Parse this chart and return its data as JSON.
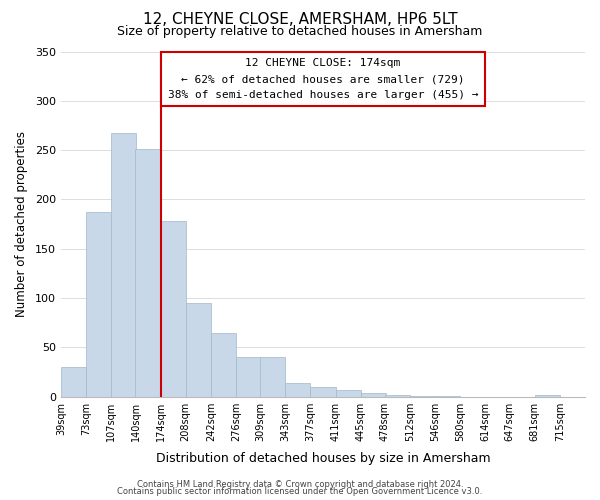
{
  "title": "12, CHEYNE CLOSE, AMERSHAM, HP6 5LT",
  "subtitle": "Size of property relative to detached houses in Amersham",
  "xlabel": "Distribution of detached houses by size in Amersham",
  "ylabel": "Number of detached properties",
  "bar_left_edges": [
    39,
    73,
    107,
    140,
    174,
    208,
    242,
    276,
    309,
    343,
    377,
    411,
    445,
    478,
    512,
    546,
    580,
    614,
    647,
    681
  ],
  "bar_heights": [
    30,
    187,
    267,
    251,
    178,
    95,
    65,
    40,
    40,
    14,
    10,
    7,
    4,
    2,
    1,
    1,
    0,
    0,
    0,
    2
  ],
  "bin_width": 34,
  "x_tick_labels": [
    "39sqm",
    "73sqm",
    "107sqm",
    "140sqm",
    "174sqm",
    "208sqm",
    "242sqm",
    "276sqm",
    "309sqm",
    "343sqm",
    "377sqm",
    "411sqm",
    "445sqm",
    "478sqm",
    "512sqm",
    "546sqm",
    "580sqm",
    "614sqm",
    "647sqm",
    "681sqm",
    "715sqm"
  ],
  "x_tick_positions": [
    39,
    73,
    107,
    140,
    174,
    208,
    242,
    276,
    309,
    343,
    377,
    411,
    445,
    478,
    512,
    546,
    580,
    614,
    647,
    681,
    715
  ],
  "property_line_x": 174,
  "bar_color": "#c8d8e8",
  "bar_edge_color": "#a0b8cc",
  "line_color": "#cc0000",
  "annotation_box_edge": "#cc0000",
  "ylim": [
    0,
    350
  ],
  "yticks": [
    0,
    50,
    100,
    150,
    200,
    250,
    300,
    350
  ],
  "annotation_title": "12 CHEYNE CLOSE: 174sqm",
  "annotation_line1": "← 62% of detached houses are smaller (729)",
  "annotation_line2": "38% of semi-detached houses are larger (455) →",
  "footer_line1": "Contains HM Land Registry data © Crown copyright and database right 2024.",
  "footer_line2": "Contains public sector information licensed under the Open Government Licence v3.0.",
  "background_color": "#ffffff",
  "grid_color": "#dddddd",
  "xlim_left": 39,
  "xlim_right": 749
}
